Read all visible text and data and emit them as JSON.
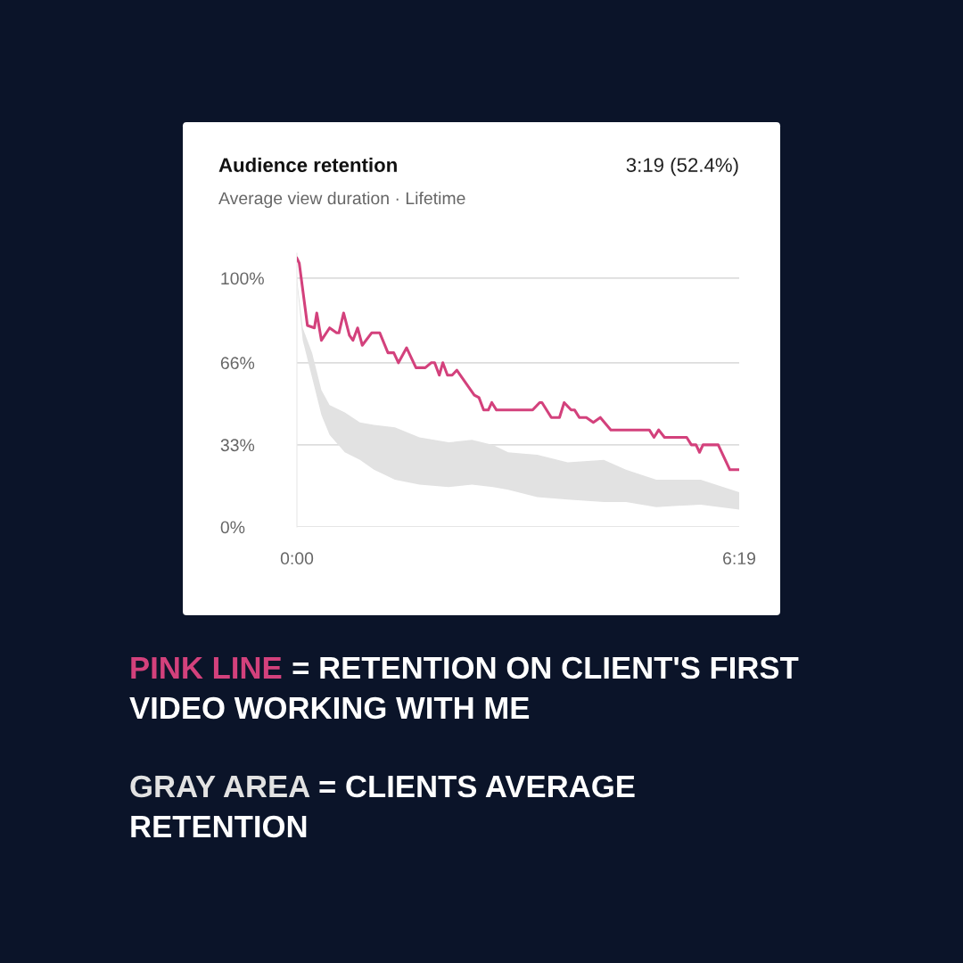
{
  "chart_data": {
    "type": "line",
    "title": "Audience retention",
    "subtitle": "Average view duration · Lifetime",
    "annotations": [
      "3:19 (52.4%)",
      "PINK LINE = RETENTION ON CLIENT'S FIRST VIDEO WORKING WITH ME",
      "GRAY AREA = CLIENTS AVERAGE RETENTION"
    ],
    "series": [
      {
        "color": "#e2e2e2",
        "x": [
          0,
          5,
          13,
          21,
          28,
          41,
          54,
          66,
          84,
          105,
          130,
          150,
          168,
          181,
          206,
          232,
          263,
          282,
          308,
          346,
          379
        ],
        "values": [
          null,
          null,
          null,
          null,
          null,
          null,
          null,
          null,
          null,
          null,
          null,
          null,
          null,
          null,
          null,
          null,
          null,
          null,
          null,
          null,
          null
        ],
        "lower": [
          98,
          75,
          60,
          45,
          37,
          30,
          27,
          23,
          19,
          17,
          16,
          17,
          16,
          15,
          12,
          11,
          10,
          10,
          8,
          9,
          7
        ],
        "upper": [
          100,
          80,
          70,
          55,
          49,
          46,
          42,
          41,
          40,
          36,
          34,
          35,
          33,
          30,
          29,
          26,
          27,
          23,
          19,
          19,
          14
        ]
      },
      {
        "color": "#d3417c",
        "x": [
          0,
          2,
          9,
          15,
          17,
          21,
          28,
          34,
          36,
          40,
          45,
          48,
          52,
          56,
          64,
          71,
          78,
          83,
          87,
          94,
          102,
          110,
          115,
          118,
          122,
          125,
          129,
          133,
          137,
          152,
          156,
          160,
          164,
          167,
          171,
          181,
          202,
          208,
          210,
          218,
          225,
          229,
          235,
          238,
          242,
          248,
          254,
          260,
          269,
          302,
          306,
          310,
          315,
          334,
          338,
          342,
          345,
          348,
          361,
          371,
          379
        ],
        "values": [
          108,
          106,
          81,
          80,
          86,
          75,
          80,
          78,
          78,
          86,
          77,
          75,
          80,
          73,
          78,
          78,
          70,
          70,
          66,
          72,
          64,
          64,
          66,
          66,
          61,
          66,
          61,
          61,
          63,
          53,
          52,
          47,
          47,
          50,
          47,
          47,
          47,
          50,
          50,
          44,
          44,
          50,
          47,
          47,
          44,
          44,
          42,
          44,
          39,
          39,
          36,
          39,
          36,
          36,
          33,
          33,
          30,
          33,
          33,
          23,
          23
        ]
      }
    ],
    "xlim": [
      0,
      379
    ],
    "ylim": [
      0,
      110
    ],
    "xticks": [
      {
        "value": 0,
        "label": "0:00"
      },
      {
        "value": 379,
        "label": "6:19"
      }
    ],
    "yticks": [
      {
        "value": 0,
        "label": "0%"
      },
      {
        "value": 33,
        "label": "33%"
      },
      {
        "value": 66,
        "label": "66%"
      },
      {
        "value": 100,
        "label": "100%"
      }
    ],
    "grid": "y",
    "legend": false,
    "marker": "none",
    "line_style": "solid"
  }
}
